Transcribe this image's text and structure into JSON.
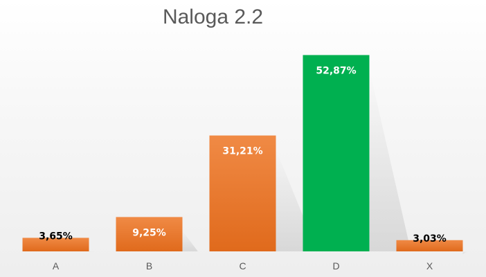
{
  "chart_data": {
    "type": "bar",
    "title": "Naloga 2.2",
    "categories": [
      "A",
      "B",
      "C",
      "D",
      "X"
    ],
    "values": [
      3.65,
      9.25,
      31.21,
      52.87,
      3.03
    ],
    "data_labels": [
      "3,65%",
      "9,25%",
      "31,21%",
      "52,87%",
      "3,03%"
    ],
    "unit": "%",
    "ylim": [
      0,
      58
    ],
    "grid": false,
    "legend": "none",
    "colors": {
      "default_bar": "#ed7d31",
      "highlight_bar": "#00b050",
      "highlight_category": "D",
      "label_dark": "#000000",
      "label_light": "#ffffff"
    }
  }
}
